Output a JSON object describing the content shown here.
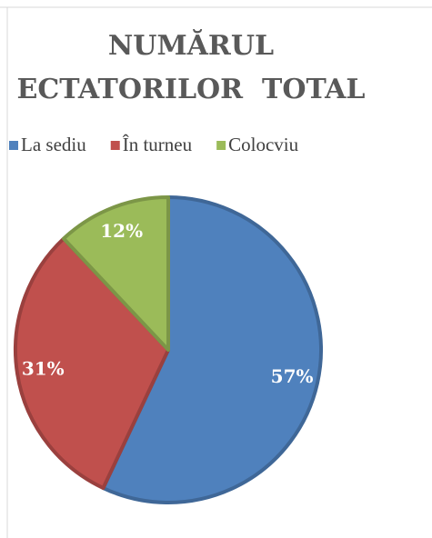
{
  "chart_data": {
    "type": "pie",
    "title": [
      "NUMĂRUL",
      "ECTATORILOR  TOTAL"
    ],
    "categories": [
      "La sediu",
      "În turneu",
      "Colocviu"
    ],
    "values": [
      57,
      31,
      12
    ],
    "value_labels": [
      "57%",
      "31%",
      "12%"
    ],
    "colors": [
      "#4f81bd",
      "#c0504d",
      "#9bbb59"
    ],
    "legend": "top"
  }
}
